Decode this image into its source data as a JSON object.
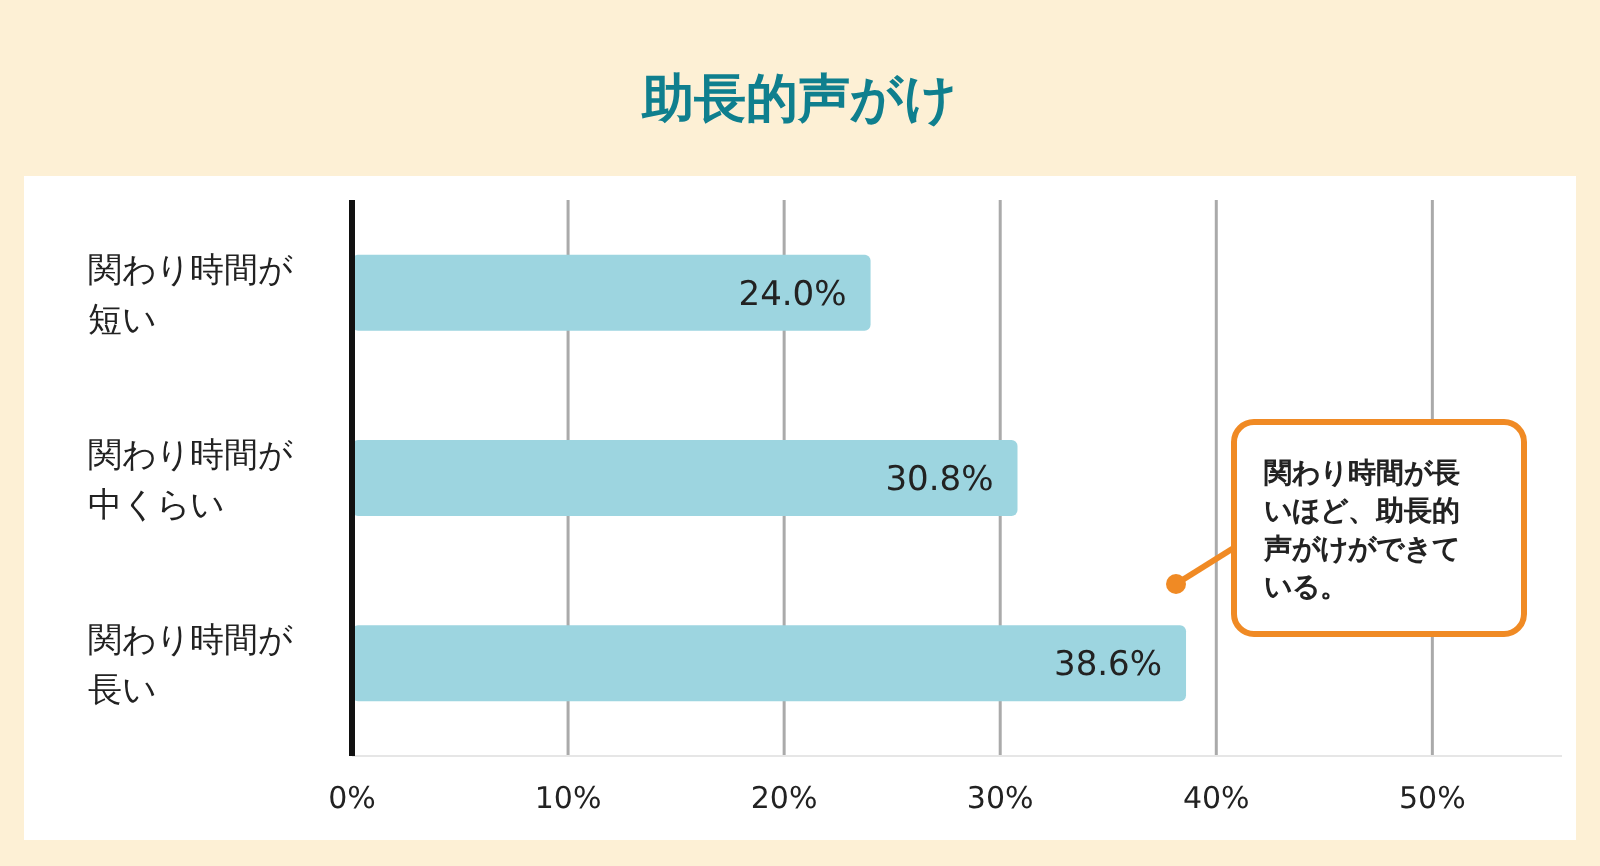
{
  "chart_data": {
    "type": "bar",
    "orientation": "horizontal",
    "title": "助長的声がけ",
    "categories": [
      "関わり時間が短い",
      "関わり時間が中くらい",
      "関わり時間が長い"
    ],
    "values": [
      24.0,
      30.8,
      38.6
    ],
    "color": "#9dd5e0",
    "data_labels": true,
    "value_labels": [
      "24.0%",
      "30.8%",
      "38.6%"
    ],
    "xlim": [
      0,
      56
    ],
    "xticks": [
      {
        "value": 0,
        "label": "0%"
      },
      {
        "value": 10,
        "label": "10%"
      },
      {
        "value": 20,
        "label": "20%"
      },
      {
        "value": 30,
        "label": "30%"
      },
      {
        "value": 40,
        "label": "40%"
      },
      {
        "value": 50,
        "label": "50%"
      }
    ],
    "grid": "x",
    "annotations": [
      "関わり時間が長いほど、助長的声がけができている。"
    ]
  }
}
